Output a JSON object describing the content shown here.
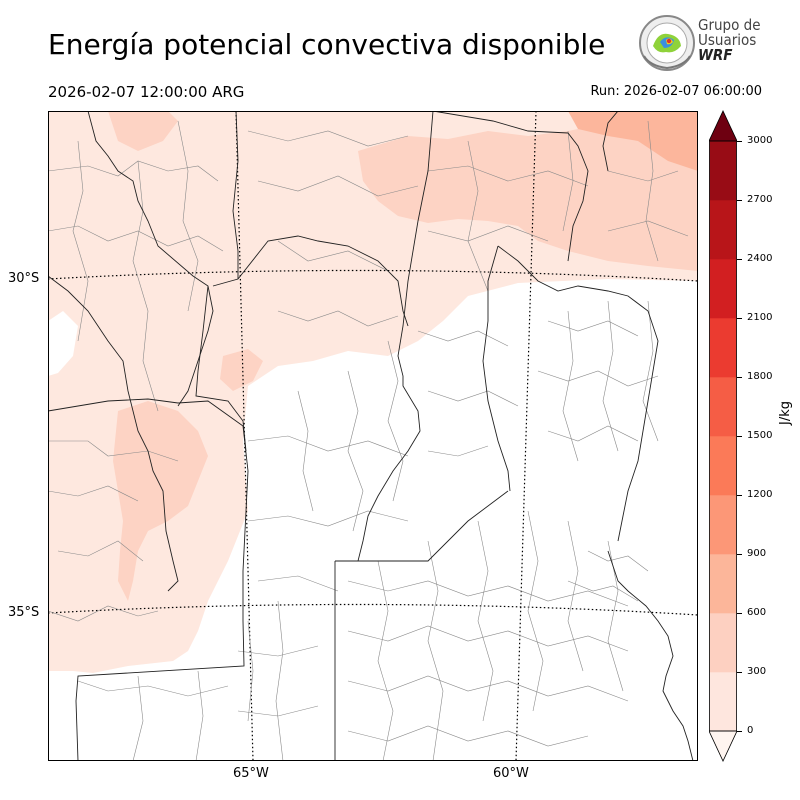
{
  "header": {
    "title": "Energía potencial convectiva disponible",
    "valid_time": "2026-02-07 12:00:00 ARG",
    "run_time": "Run: 2026-02-07 06:00:00"
  },
  "logo": {
    "line1": "Grupo de",
    "line2": "Usuarios",
    "line3": "WRF"
  },
  "map": {
    "lat_labels": [
      "30°S",
      "35°S"
    ],
    "lon_labels": [
      "65°W",
      "60°W"
    ]
  },
  "colorbar": {
    "label": "J/kg",
    "ticks": [
      "0",
      "300",
      "600",
      "900",
      "1200",
      "1500",
      "1800",
      "2100",
      "2400",
      "2700",
      "3000"
    ],
    "colors": [
      "#fee6de",
      "#fdd0c1",
      "#fcb69a",
      "#fc9777",
      "#fb7a58",
      "#f55d45",
      "#eb3b30",
      "#d21f21",
      "#b81519",
      "#980c15",
      "#6e0011"
    ],
    "extend": "both"
  }
}
